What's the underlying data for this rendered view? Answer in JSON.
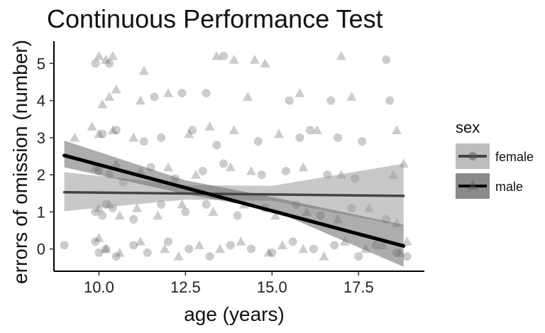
{
  "chart_data": {
    "type": "scatter",
    "title": "Continuous Performance Test",
    "xlabel": "age (years)",
    "ylabel": "errors of omission (number)",
    "xlim": [
      8.7,
      19.4
    ],
    "ylim": [
      -0.6,
      5.6
    ],
    "x_ticks": [
      "10.0",
      "12.5",
      "15.0",
      "17.5"
    ],
    "x_tick_values": [
      10.0,
      12.5,
      15.0,
      17.5
    ],
    "y_ticks": [
      "0",
      "1",
      "2",
      "3",
      "4",
      "5"
    ],
    "y_tick_values": [
      0,
      1,
      2,
      3,
      4,
      5
    ],
    "grid": false,
    "legend": {
      "title": "sex",
      "placement": "right",
      "entries": [
        {
          "label": "female",
          "marker": "circle",
          "line_color": "#444444"
        },
        {
          "label": "male",
          "marker": "triangle",
          "line_color": "#000000"
        }
      ]
    },
    "point_color": "#555555",
    "point_opacity": 0.3,
    "series": [
      {
        "name": "female",
        "marker": "circle",
        "fit": {
          "x": [
            9.0,
            18.8
          ],
          "y": [
            1.53,
            1.43
          ]
        },
        "ci": {
          "x": [
            9.0,
            12.5,
            15.0,
            18.8
          ],
          "lower": [
            1.02,
            1.33,
            1.3,
            0.62
          ],
          "upper": [
            2.07,
            1.72,
            1.7,
            2.3
          ]
        },
        "points": [
          [
            9.0,
            0.1
          ],
          [
            9.9,
            0.2
          ],
          [
            10.0,
            -0.1
          ],
          [
            10.2,
            0.0
          ],
          [
            10.5,
            -0.2
          ],
          [
            11.0,
            0.1
          ],
          [
            11.4,
            -0.1
          ],
          [
            12.0,
            0.2
          ],
          [
            12.6,
            0.0
          ],
          [
            13.2,
            -0.2
          ],
          [
            13.8,
            0.1
          ],
          [
            14.4,
            0.0
          ],
          [
            15.0,
            -0.1
          ],
          [
            15.6,
            0.2
          ],
          [
            16.2,
            0.0
          ],
          [
            16.8,
            0.1
          ],
          [
            17.5,
            -0.2
          ],
          [
            18.0,
            0.1
          ],
          [
            18.6,
            -0.1
          ],
          [
            18.9,
            -0.2
          ],
          [
            9.9,
            1.0
          ],
          [
            10.1,
            0.9
          ],
          [
            10.2,
            1.2
          ],
          [
            10.4,
            1.1
          ],
          [
            11.0,
            0.8
          ],
          [
            11.8,
            1.2
          ],
          [
            12.5,
            1.0
          ],
          [
            13.1,
            1.2
          ],
          [
            14.0,
            0.9
          ],
          [
            14.8,
            1.1
          ],
          [
            15.7,
            1.2
          ],
          [
            16.4,
            0.9
          ],
          [
            17.3,
            1.1
          ],
          [
            18.3,
            0.8
          ],
          [
            10.0,
            2.1
          ],
          [
            10.3,
            2.0
          ],
          [
            10.7,
            1.8
          ],
          [
            11.5,
            2.2
          ],
          [
            12.2,
            1.9
          ],
          [
            13.0,
            2.1
          ],
          [
            13.6,
            2.3
          ],
          [
            14.7,
            2.0
          ],
          [
            15.4,
            2.1
          ],
          [
            16.6,
            2.0
          ],
          [
            17.4,
            1.9
          ],
          [
            10.1,
            3.1
          ],
          [
            10.5,
            3.2
          ],
          [
            11.3,
            2.9
          ],
          [
            11.8,
            3.0
          ],
          [
            12.7,
            3.2
          ],
          [
            13.4,
            2.8
          ],
          [
            14.6,
            2.9
          ],
          [
            15.8,
            3.0
          ],
          [
            16.1,
            3.2
          ],
          [
            16.9,
            3.0
          ],
          [
            17.6,
            2.9
          ],
          [
            11.6,
            4.1
          ],
          [
            12.4,
            4.2
          ],
          [
            13.1,
            4.2
          ],
          [
            15.5,
            4.0
          ],
          [
            16.7,
            4.0
          ],
          [
            18.4,
            4.0
          ],
          [
            9.9,
            5.0
          ],
          [
            10.3,
            5.0
          ],
          [
            18.3,
            5.1
          ],
          [
            13.6,
            5.2
          ]
        ]
      },
      {
        "name": "male",
        "marker": "triangle",
        "fit": {
          "x": [
            9.0,
            18.8
          ],
          "y": [
            2.52,
            0.08
          ]
        },
        "ci": {
          "x": [
            9.0,
            12.5,
            15.0,
            18.8
          ],
          "lower": [
            2.2,
            1.48,
            1.05,
            -0.48
          ],
          "upper": [
            2.92,
            1.85,
            1.4,
            0.65
          ]
        },
        "points": [
          [
            9.3,
            3.0
          ],
          [
            10.0,
            0.3
          ],
          [
            10.2,
            0.0
          ],
          [
            10.6,
            -0.1
          ],
          [
            11.2,
            0.2
          ],
          [
            11.9,
            0.0
          ],
          [
            12.3,
            -0.2
          ],
          [
            12.9,
            0.1
          ],
          [
            13.5,
            0.0
          ],
          [
            14.1,
            0.2
          ],
          [
            14.9,
            -0.1
          ],
          [
            15.3,
            0.1
          ],
          [
            15.9,
            0.0
          ],
          [
            16.5,
            -0.2
          ],
          [
            17.1,
            0.2
          ],
          [
            17.7,
            0.0
          ],
          [
            18.2,
            0.1
          ],
          [
            18.7,
            -0.1
          ],
          [
            18.9,
            0.2
          ],
          [
            10.0,
            1.1
          ],
          [
            10.3,
            1.2
          ],
          [
            10.6,
            0.9
          ],
          [
            11.1,
            1.1
          ],
          [
            11.7,
            0.9
          ],
          [
            12.4,
            1.2
          ],
          [
            13.3,
            1.0
          ],
          [
            14.2,
            1.2
          ],
          [
            15.1,
            0.9
          ],
          [
            16.0,
            1.0
          ],
          [
            16.9,
            0.8
          ],
          [
            17.8,
            1.1
          ],
          [
            18.6,
            0.7
          ],
          [
            9.9,
            2.2
          ],
          [
            10.5,
            2.3
          ],
          [
            11.2,
            2.1
          ],
          [
            12.0,
            2.2
          ],
          [
            12.8,
            2.0
          ],
          [
            13.8,
            2.2
          ],
          [
            14.4,
            2.1
          ],
          [
            15.9,
            2.2
          ],
          [
            17.0,
            2.0
          ],
          [
            18.5,
            2.0
          ],
          [
            18.8,
            2.3
          ],
          [
            9.8,
            3.3
          ],
          [
            10.0,
            3.1
          ],
          [
            10.4,
            3.2
          ],
          [
            11.0,
            3.0
          ],
          [
            12.6,
            3.1
          ],
          [
            13.2,
            3.3
          ],
          [
            13.9,
            3.2
          ],
          [
            15.2,
            3.1
          ],
          [
            16.3,
            3.2
          ],
          [
            18.6,
            3.2
          ],
          [
            10.1,
            3.9
          ],
          [
            10.3,
            4.1
          ],
          [
            10.5,
            4.3
          ],
          [
            11.2,
            4.0
          ],
          [
            12.0,
            4.2
          ],
          [
            14.3,
            4.1
          ],
          [
            15.8,
            4.2
          ],
          [
            17.3,
            4.1
          ],
          [
            10.0,
            5.2
          ],
          [
            10.2,
            5.1
          ],
          [
            10.4,
            5.2
          ],
          [
            11.3,
            4.8
          ],
          [
            13.4,
            5.2
          ],
          [
            13.9,
            5.1
          ],
          [
            14.5,
            5.1
          ],
          [
            14.8,
            5.0
          ],
          [
            17.0,
            5.2
          ]
        ]
      }
    ]
  }
}
